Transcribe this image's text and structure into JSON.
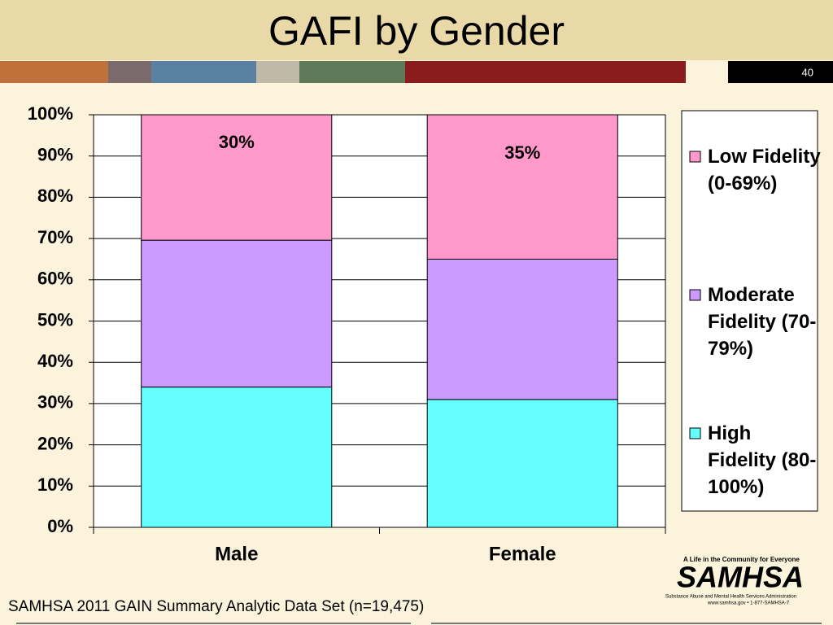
{
  "slide": {
    "number": "40",
    "footnote": "SAMHSA 2011 GAIN Summary Analytic Data Set (n=19,475)",
    "logo": {
      "tagline": "A Life in the Community for Everyone",
      "name": "SAMHSA",
      "subtitle": "Substance Abuse and Mental Health Services Administration",
      "contact": "www.samhsa.gov • 1-877-SAMHSA-7"
    }
  },
  "chart_data": {
    "type": "stacked_bar",
    "title": "GAFI by Gender",
    "categories": [
      "Male",
      "Female"
    ],
    "series": [
      {
        "name": "High Fidelity (80-100%)",
        "color": "#66ffff",
        "values": [
          34,
          31
        ]
      },
      {
        "name": "Moderate Fidelity (70-79%)",
        "color": "#cc99ff",
        "values": [
          35.6,
          34
        ]
      },
      {
        "name": "Low Fidelity (0-69%)",
        "color": "#ff99cc",
        "values": [
          30.4,
          35
        ],
        "value_labels": [
          "30%",
          "35%"
        ]
      }
    ],
    "ylim": [
      0,
      100
    ],
    "yticks": [
      {
        "value": 0,
        "label": "0%"
      },
      {
        "value": 10,
        "label": "10%"
      },
      {
        "value": 20,
        "label": "20%"
      },
      {
        "value": 30,
        "label": "30%"
      },
      {
        "value": 40,
        "label": "40%"
      },
      {
        "value": 50,
        "label": "50%"
      },
      {
        "value": 60,
        "label": "60%"
      },
      {
        "value": 70,
        "label": "70%"
      },
      {
        "value": 80,
        "label": "80%"
      },
      {
        "value": 90,
        "label": "90%"
      },
      {
        "value": 100,
        "label": "100%"
      }
    ],
    "grid": true,
    "legend": "right"
  }
}
